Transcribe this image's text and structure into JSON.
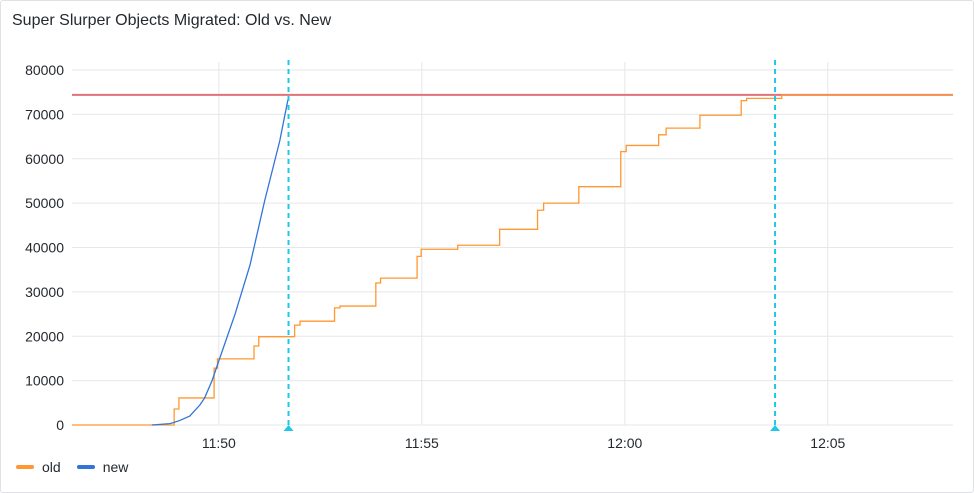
{
  "panel": {
    "title": "Super Slurper Objects Migrated: Old vs. New"
  },
  "chart_data": {
    "type": "line",
    "title": "Super Slurper Objects Migrated: Old vs. New",
    "xlabel": "",
    "ylabel": "",
    "xlim": [
      "11:46:23",
      "12:08:05"
    ],
    "ylim": [
      0,
      80000
    ],
    "x_ticks": [
      "11:50",
      "11:55",
      "12:00",
      "12:05"
    ],
    "y_ticks": [
      0,
      10000,
      20000,
      30000,
      40000,
      50000,
      60000,
      70000,
      80000
    ],
    "grid": true,
    "legend_placement": "bottom-left",
    "threshold": {
      "value": 74400,
      "color": "#E0737A"
    },
    "annotations": [
      {
        "time": "11:51:43",
        "color": "#1FC8E8"
      },
      {
        "time": "12:03:42",
        "color": "#1FC8E8"
      }
    ],
    "series": [
      {
        "name": "old",
        "color": "#FF9830",
        "interpolation": "step-after",
        "points": [
          [
            "11:46:23",
            0
          ],
          [
            "11:48:54",
            3600
          ],
          [
            "11:49:01",
            6100
          ],
          [
            "11:49:53",
            12800
          ],
          [
            "11:49:58",
            14900
          ],
          [
            "11:50:52",
            17800
          ],
          [
            "11:50:59",
            19900
          ],
          [
            "11:51:52",
            22500
          ],
          [
            "11:52:00",
            23400
          ],
          [
            "11:52:51",
            26400
          ],
          [
            "11:52:59",
            26800
          ],
          [
            "11:53:52",
            32000
          ],
          [
            "11:53:59",
            33100
          ],
          [
            "11:54:53",
            38000
          ],
          [
            "11:54:59",
            39600
          ],
          [
            "11:55:53",
            40500
          ],
          [
            "11:56:55",
            44100
          ],
          [
            "11:57:51",
            48400
          ],
          [
            "11:58:00",
            50000
          ],
          [
            "11:58:52",
            53700
          ],
          [
            "11:59:54",
            61600
          ],
          [
            "12:00:02",
            63000
          ],
          [
            "12:00:50",
            65400
          ],
          [
            "12:01:01",
            66900
          ],
          [
            "12:01:51",
            69800
          ],
          [
            "12:02:52",
            73100
          ],
          [
            "12:03:00",
            73600
          ],
          [
            "12:03:52",
            74400
          ],
          [
            "12:08:05",
            74400
          ]
        ]
      },
      {
        "name": "new",
        "color": "#3274D9",
        "interpolation": "linear",
        "points": [
          [
            "11:48:21",
            0
          ],
          [
            "11:48:48",
            300
          ],
          [
            "11:49:02",
            1000
          ],
          [
            "11:49:17",
            2000
          ],
          [
            "11:49:32",
            4500
          ],
          [
            "11:49:39",
            6100
          ],
          [
            "11:49:50",
            10000
          ],
          [
            "11:50:01",
            14900
          ],
          [
            "11:50:24",
            25000
          ],
          [
            "11:50:46",
            36000
          ],
          [
            "11:51:08",
            50700
          ],
          [
            "11:51:30",
            64000
          ],
          [
            "11:51:43",
            74000
          ]
        ]
      }
    ]
  }
}
